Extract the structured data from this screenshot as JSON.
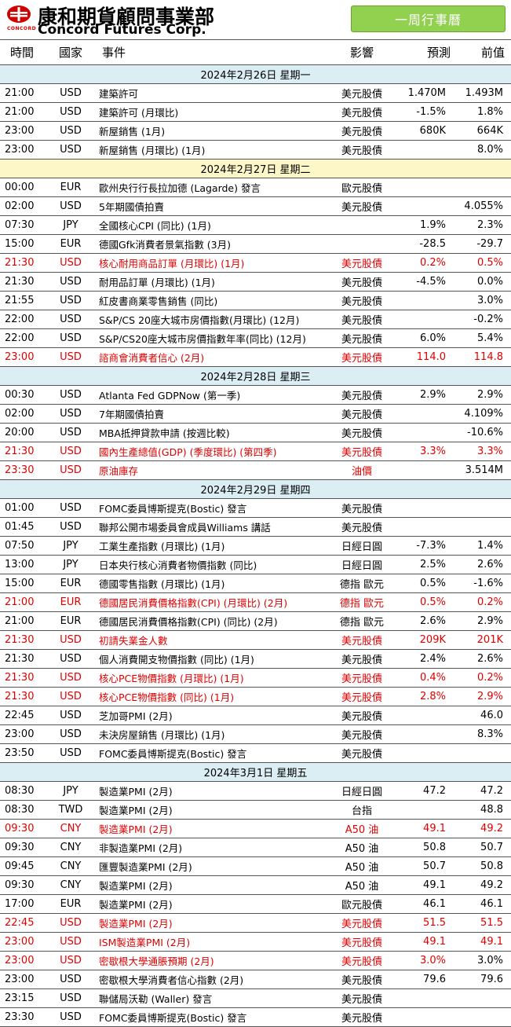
{
  "header": {
    "logo_cn": "康和期貨顧問事業部",
    "logo_en": "Concord Futures Corp.",
    "logo_small": "CONCORD",
    "calendar_button": "一周行事曆"
  },
  "columns": [
    "時間",
    "國家",
    "事件",
    "影響",
    "預測",
    "前值"
  ],
  "days": [
    {
      "date": "2024年2月26日 星期一",
      "rows": [
        {
          "time": "21:00",
          "country": "USD",
          "event": "建築許可",
          "impact": "美元股債",
          "forecast": "1.470M",
          "previous": "1.493M",
          "red": false
        },
        {
          "time": "21:00",
          "country": "USD",
          "event": "建築許可 (月環比)",
          "impact": "美元股債",
          "forecast": "-1.5%",
          "previous": "1.8%",
          "red": false
        },
        {
          "time": "23:00",
          "country": "USD",
          "event": "新屋銷售 (1月)",
          "impact": "美元股債",
          "forecast": "680K",
          "previous": "664K",
          "red": false
        },
        {
          "time": "23:00",
          "country": "USD",
          "event": "新屋銷售 (月環比) (1月)",
          "impact": "美元股債",
          "forecast": "",
          "previous": "8.0%",
          "red": false
        }
      ]
    },
    {
      "date": "2024年2月27日 星期二",
      "rows": [
        {
          "time": "00:00",
          "country": "EUR",
          "event": "歐州央行行長拉加德 (Lagarde) 發言",
          "impact": "歐元股債",
          "forecast": "",
          "previous": "",
          "red": false
        },
        {
          "time": "02:00",
          "country": "USD",
          "event": "5年期國債拍賣",
          "impact": "美元股債",
          "forecast": "",
          "previous": "4.055%",
          "red": false
        },
        {
          "time": "07:30",
          "country": "JPY",
          "event": "全國核心CPI (同比) (1月)",
          "impact": "",
          "forecast": "1.9%",
          "previous": "2.3%",
          "red": false
        },
        {
          "time": "15:00",
          "country": "EUR",
          "event": "德國Gfk消費者景氣指數 (3月)",
          "impact": "",
          "forecast": "-28.5",
          "previous": "-29.7",
          "red": false
        },
        {
          "time": "21:30",
          "country": "USD",
          "event": "核心耐用商品訂單 (月環比) (1月)",
          "impact": "美元股債",
          "forecast": "0.2%",
          "previous": "0.5%",
          "red": true
        },
        {
          "time": "21:30",
          "country": "USD",
          "event": "耐用品訂單 (月環比) (1月)",
          "impact": "美元股債",
          "forecast": "-4.5%",
          "previous": "0.0%",
          "red": false
        },
        {
          "time": "21:55",
          "country": "USD",
          "event": "紅皮書商業零售銷售 (同比)",
          "impact": "美元股債",
          "forecast": "",
          "previous": "3.0%",
          "red": false
        },
        {
          "time": "22:00",
          "country": "USD",
          "event": "S&P/CS 20座大城市房價指數(月環比) (12月)",
          "impact": "美元股債",
          "forecast": "",
          "previous": "-0.2%",
          "red": false
        },
        {
          "time": "22:00",
          "country": "USD",
          "event": "S&P/CS20座大城市房價指數年率(同比) (12月)",
          "impact": "美元股債",
          "forecast": "6.0%",
          "previous": "5.4%",
          "red": false
        },
        {
          "time": "23:00",
          "country": "USD",
          "event": "諮商會消費者信心 (2月)",
          "impact": "美元股債",
          "forecast": "114.0",
          "previous": "114.8",
          "red": true
        }
      ]
    },
    {
      "date": "2024年2月28日 星期三",
      "rows": [
        {
          "time": "00:30",
          "country": "USD",
          "event": "Atlanta Fed GDPNow (第一季)",
          "impact": "美元股債",
          "forecast": "2.9%",
          "previous": "2.9%",
          "red": false
        },
        {
          "time": "02:00",
          "country": "USD",
          "event": "7年期國債拍賣",
          "impact": "美元股債",
          "forecast": "",
          "previous": "4.109%",
          "red": false
        },
        {
          "time": "20:00",
          "country": "USD",
          "event": "MBA抵押貸款申請 (按週比較)",
          "impact": "美元股債",
          "forecast": "",
          "previous": "-10.6%",
          "red": false
        },
        {
          "time": "21:30",
          "country": "USD",
          "event": "國內生產總值(GDP) (季度環比) (第四季)",
          "impact": "美元股債",
          "forecast": "3.3%",
          "previous": "3.3%",
          "red": true
        },
        {
          "time": "23:30",
          "country": "USD",
          "event": "原油庫存",
          "impact": "油價",
          "forecast": "",
          "previous": "3.514M",
          "red": true,
          "prev_black": true
        }
      ]
    },
    {
      "date": "2024年2月29日 星期四",
      "rows": [
        {
          "time": "01:00",
          "country": "USD",
          "event": "FOMC委員博斯提克(Bostic) 發言",
          "impact": "美元股債",
          "forecast": "",
          "previous": "",
          "red": false
        },
        {
          "time": "01:45",
          "country": "USD",
          "event": "聯邦公開市場委員會成員Williams 講話",
          "impact": "美元股債",
          "forecast": "",
          "previous": "",
          "red": false
        },
        {
          "time": "07:50",
          "country": "JPY",
          "event": "工業生產指數 (月環比) (1月)",
          "impact": "日經日圓",
          "forecast": "-7.3%",
          "previous": "1.4%",
          "red": false
        },
        {
          "time": "13:00",
          "country": "JPY",
          "event": "日本央行核心消費者物價指數 (同比)",
          "impact": "日經日圓",
          "forecast": "2.5%",
          "previous": "2.6%",
          "red": false
        },
        {
          "time": "15:00",
          "country": "EUR",
          "event": "德國零售指數 (月環比) (1月)",
          "impact": "德指 歐元",
          "forecast": "0.5%",
          "previous": "-1.6%",
          "red": false
        },
        {
          "time": "21:00",
          "country": "EUR",
          "event": "德國居民消費價格指數(CPI) (月環比) (2月)",
          "impact": "德指 歐元",
          "forecast": "0.5%",
          "previous": "0.2%",
          "red": true
        },
        {
          "time": "21:00",
          "country": "EUR",
          "event": "德國居民消費價格指數(CPI) (同比) (2月)",
          "impact": "德指 歐元",
          "forecast": "2.6%",
          "previous": "2.9%",
          "red": false
        },
        {
          "time": "21:30",
          "country": "USD",
          "event": "初請失業金人數",
          "impact": "美元股債",
          "forecast": "209K",
          "previous": "201K",
          "red": true
        },
        {
          "time": "21:30",
          "country": "USD",
          "event": "個人消費開支物價指數 (同比) (1月)",
          "impact": "美元股債",
          "forecast": "2.4%",
          "previous": "2.6%",
          "red": false
        },
        {
          "time": "21:30",
          "country": "USD",
          "event": "核心PCE物價指數 (月環比) (1月)",
          "impact": "美元股債",
          "forecast": "0.4%",
          "previous": "0.2%",
          "red": true
        },
        {
          "time": "21:30",
          "country": "USD",
          "event": "核心PCE物價指數 (同比) (1月)",
          "impact": "美元股債",
          "forecast": "2.8%",
          "previous": "2.9%",
          "red": true
        },
        {
          "time": "22:45",
          "country": "USD",
          "event": "芝加哥PMI (2月)",
          "impact": "美元股債",
          "forecast": "",
          "previous": "46.0",
          "red": false
        },
        {
          "time": "23:00",
          "country": "USD",
          "event": "未決房屋銷售 (月環比) (1月)",
          "impact": "美元股債",
          "forecast": "",
          "previous": "8.3%",
          "red": false
        },
        {
          "time": "23:50",
          "country": "USD",
          "event": "FOMC委員博斯提克(Bostic) 發言",
          "impact": "美元股債",
          "forecast": "",
          "previous": "",
          "red": false
        }
      ]
    },
    {
      "date": "2024年3月1日 星期五",
      "rows": [
        {
          "time": "08:30",
          "country": "JPY",
          "event": "製造業PMI (2月)",
          "impact": "日經日圓",
          "forecast": "47.2",
          "previous": "47.2",
          "red": false
        },
        {
          "time": "08:30",
          "country": "TWD",
          "event": "製造業PMI (2月)",
          "impact": "台指",
          "forecast": "",
          "previous": "48.8",
          "red": false
        },
        {
          "time": "09:30",
          "country": "CNY",
          "event": "製造業PMI (2月)",
          "impact": "A50 油",
          "forecast": "49.1",
          "previous": "49.2",
          "red": true
        },
        {
          "time": "09:30",
          "country": "CNY",
          "event": "非製造業PMI (2月)",
          "impact": "A50 油",
          "forecast": "50.8",
          "previous": "50.7",
          "red": false
        },
        {
          "time": "09:45",
          "country": "CNY",
          "event": "匯豐製造業PMI (2月)",
          "impact": "A50 油",
          "forecast": "50.7",
          "previous": "50.8",
          "red": false
        },
        {
          "time": "09:30",
          "country": "CNY",
          "event": "製造業PMI (2月)",
          "impact": "A50 油",
          "forecast": "49.1",
          "previous": "49.2",
          "red": false
        },
        {
          "time": "17:00",
          "country": "EUR",
          "event": "製造業PMI (2月)",
          "impact": "歐元股債",
          "forecast": "46.1",
          "previous": "46.1",
          "red": false
        },
        {
          "time": "22:45",
          "country": "USD",
          "event": "製造業PMI (2月)",
          "impact": "美元股債",
          "forecast": "51.5",
          "previous": "51.5",
          "red": true
        },
        {
          "time": "23:00",
          "country": "USD",
          "event": "ISM製造業PMI (2月)",
          "impact": "美元股債",
          "forecast": "49.1",
          "previous": "49.1",
          "red": true
        },
        {
          "time": "23:00",
          "country": "USD",
          "event": "密歇根大學通脹預期 (2月)",
          "impact": "美元股債",
          "forecast": "3.0%",
          "previous": "3.0%",
          "red": true,
          "partial": true
        },
        {
          "time": "23:00",
          "country": "USD",
          "event": "密歇根大學消費者信心指數 (2月)",
          "impact": "美元股債",
          "forecast": "79.6",
          "previous": "79.6",
          "red": false
        },
        {
          "time": "23:15",
          "country": "USD",
          "event": "聯儲局沃勒 (Waller) 發言",
          "impact": "美元股債",
          "forecast": "",
          "previous": "",
          "red": false
        },
        {
          "time": "23:30",
          "country": "USD",
          "event": "FOMC委員博斯提克(Bostic) 發言",
          "impact": "美元股債",
          "forecast": "",
          "previous": "",
          "red": false
        }
      ]
    }
  ],
  "colors": {
    "date_bg": "#daeef3",
    "date_bg_alt": "#fdf6c7",
    "button_bg": "#92d050",
    "highlight_text": "#e00000",
    "logo_red": "#d00000"
  }
}
